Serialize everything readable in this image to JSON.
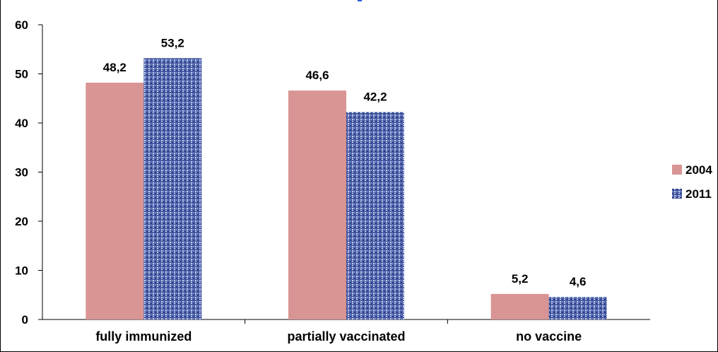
{
  "chart_data": {
    "type": "bar",
    "categories": [
      "fully immunized",
      "partially vaccinated",
      "no vaccine"
    ],
    "series": [
      {
        "name": "2004",
        "values": [
          48.2,
          46.6,
          5.2
        ],
        "labels": [
          "48,2",
          "46,6",
          "5,2"
        ],
        "color": "#d99494"
      },
      {
        "name": "2011",
        "values": [
          53.2,
          42.2,
          4.6
        ],
        "labels": [
          "53,2",
          "42,2",
          "4,6"
        ],
        "color": "#3c519c"
      }
    ],
    "ylim": [
      0,
      60
    ],
    "yticks": [
      0,
      10,
      20,
      30,
      40,
      50,
      60
    ],
    "grid": false,
    "legend": "right"
  }
}
